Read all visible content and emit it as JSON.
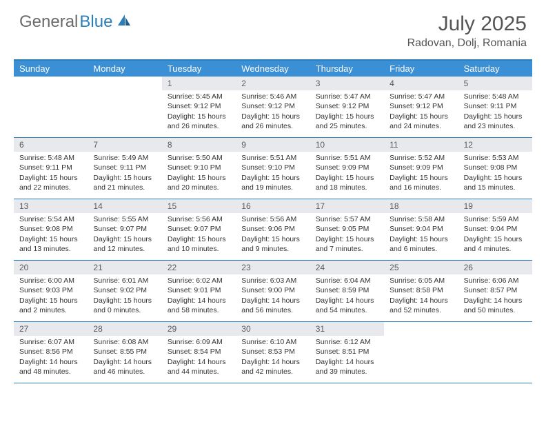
{
  "brand": {
    "part1": "General",
    "part2": "Blue"
  },
  "title": "July 2025",
  "location": "Radovan, Dolj, Romania",
  "colors": {
    "header_bar": "#3b8fd4",
    "border": "#2a7fba",
    "day_number_bg": "#e7e9ec",
    "text": "#333333",
    "title_text": "#555555",
    "logo_gray": "#6a6a6a",
    "logo_blue": "#2a7fba",
    "white": "#ffffff"
  },
  "day_names": [
    "Sunday",
    "Monday",
    "Tuesday",
    "Wednesday",
    "Thursday",
    "Friday",
    "Saturday"
  ],
  "labels": {
    "sunrise": "Sunrise:",
    "sunset": "Sunset:",
    "daylight": "Daylight:"
  },
  "first_weekday_index": 2,
  "days": [
    {
      "n": 1,
      "sunrise": "5:45 AM",
      "sunset": "9:12 PM",
      "daylight": "15 hours and 26 minutes."
    },
    {
      "n": 2,
      "sunrise": "5:46 AM",
      "sunset": "9:12 PM",
      "daylight": "15 hours and 26 minutes."
    },
    {
      "n": 3,
      "sunrise": "5:47 AM",
      "sunset": "9:12 PM",
      "daylight": "15 hours and 25 minutes."
    },
    {
      "n": 4,
      "sunrise": "5:47 AM",
      "sunset": "9:12 PM",
      "daylight": "15 hours and 24 minutes."
    },
    {
      "n": 5,
      "sunrise": "5:48 AM",
      "sunset": "9:11 PM",
      "daylight": "15 hours and 23 minutes."
    },
    {
      "n": 6,
      "sunrise": "5:48 AM",
      "sunset": "9:11 PM",
      "daylight": "15 hours and 22 minutes."
    },
    {
      "n": 7,
      "sunrise": "5:49 AM",
      "sunset": "9:11 PM",
      "daylight": "15 hours and 21 minutes."
    },
    {
      "n": 8,
      "sunrise": "5:50 AM",
      "sunset": "9:10 PM",
      "daylight": "15 hours and 20 minutes."
    },
    {
      "n": 9,
      "sunrise": "5:51 AM",
      "sunset": "9:10 PM",
      "daylight": "15 hours and 19 minutes."
    },
    {
      "n": 10,
      "sunrise": "5:51 AM",
      "sunset": "9:09 PM",
      "daylight": "15 hours and 18 minutes."
    },
    {
      "n": 11,
      "sunrise": "5:52 AM",
      "sunset": "9:09 PM",
      "daylight": "15 hours and 16 minutes."
    },
    {
      "n": 12,
      "sunrise": "5:53 AM",
      "sunset": "9:08 PM",
      "daylight": "15 hours and 15 minutes."
    },
    {
      "n": 13,
      "sunrise": "5:54 AM",
      "sunset": "9:08 PM",
      "daylight": "15 hours and 13 minutes."
    },
    {
      "n": 14,
      "sunrise": "5:55 AM",
      "sunset": "9:07 PM",
      "daylight": "15 hours and 12 minutes."
    },
    {
      "n": 15,
      "sunrise": "5:56 AM",
      "sunset": "9:07 PM",
      "daylight": "15 hours and 10 minutes."
    },
    {
      "n": 16,
      "sunrise": "5:56 AM",
      "sunset": "9:06 PM",
      "daylight": "15 hours and 9 minutes."
    },
    {
      "n": 17,
      "sunrise": "5:57 AM",
      "sunset": "9:05 PM",
      "daylight": "15 hours and 7 minutes."
    },
    {
      "n": 18,
      "sunrise": "5:58 AM",
      "sunset": "9:04 PM",
      "daylight": "15 hours and 6 minutes."
    },
    {
      "n": 19,
      "sunrise": "5:59 AM",
      "sunset": "9:04 PM",
      "daylight": "15 hours and 4 minutes."
    },
    {
      "n": 20,
      "sunrise": "6:00 AM",
      "sunset": "9:03 PM",
      "daylight": "15 hours and 2 minutes."
    },
    {
      "n": 21,
      "sunrise": "6:01 AM",
      "sunset": "9:02 PM",
      "daylight": "15 hours and 0 minutes."
    },
    {
      "n": 22,
      "sunrise": "6:02 AM",
      "sunset": "9:01 PM",
      "daylight": "14 hours and 58 minutes."
    },
    {
      "n": 23,
      "sunrise": "6:03 AM",
      "sunset": "9:00 PM",
      "daylight": "14 hours and 56 minutes."
    },
    {
      "n": 24,
      "sunrise": "6:04 AM",
      "sunset": "8:59 PM",
      "daylight": "14 hours and 54 minutes."
    },
    {
      "n": 25,
      "sunrise": "6:05 AM",
      "sunset": "8:58 PM",
      "daylight": "14 hours and 52 minutes."
    },
    {
      "n": 26,
      "sunrise": "6:06 AM",
      "sunset": "8:57 PM",
      "daylight": "14 hours and 50 minutes."
    },
    {
      "n": 27,
      "sunrise": "6:07 AM",
      "sunset": "8:56 PM",
      "daylight": "14 hours and 48 minutes."
    },
    {
      "n": 28,
      "sunrise": "6:08 AM",
      "sunset": "8:55 PM",
      "daylight": "14 hours and 46 minutes."
    },
    {
      "n": 29,
      "sunrise": "6:09 AM",
      "sunset": "8:54 PM",
      "daylight": "14 hours and 44 minutes."
    },
    {
      "n": 30,
      "sunrise": "6:10 AM",
      "sunset": "8:53 PM",
      "daylight": "14 hours and 42 minutes."
    },
    {
      "n": 31,
      "sunrise": "6:12 AM",
      "sunset": "8:51 PM",
      "daylight": "14 hours and 39 minutes."
    }
  ]
}
